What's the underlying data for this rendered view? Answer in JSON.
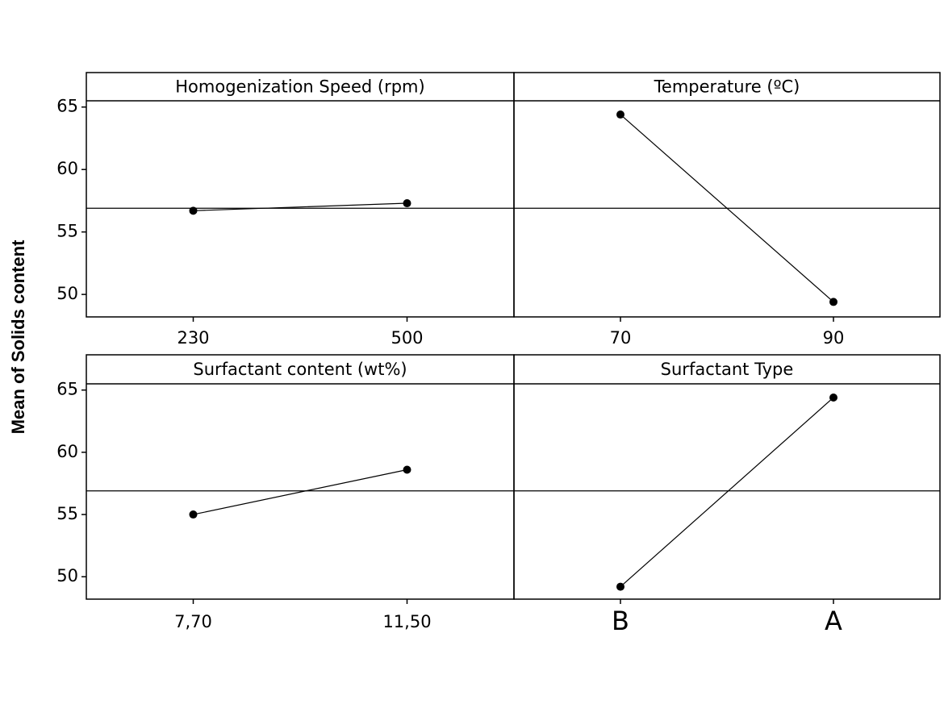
{
  "y_axis_label": "Mean of Solids content",
  "chart_data": [
    {
      "type": "line",
      "title": "Homogenization Speed (rpm)",
      "categories": [
        "230",
        "500"
      ],
      "values": [
        56.7,
        57.3
      ],
      "color": "#000000",
      "ylim": [
        48.2,
        65.5
      ],
      "yticks": [
        50,
        55,
        60,
        65
      ],
      "reference_line": 56.9
    },
    {
      "type": "line",
      "title": "Temperature (ºC)",
      "categories": [
        "70",
        "90"
      ],
      "values": [
        64.4,
        49.4
      ],
      "color": "#000000",
      "ylim": [
        48.2,
        65.5
      ],
      "reference_line": 56.9
    },
    {
      "type": "line",
      "title": "Surfactant content (wt%)",
      "categories": [
        "7,70",
        "11,50"
      ],
      "values": [
        55.0,
        58.6
      ],
      "color": "#000000",
      "ylim": [
        48.2,
        65.5
      ],
      "yticks": [
        50,
        55,
        60,
        65
      ],
      "reference_line": 56.9
    },
    {
      "type": "line",
      "title": "Surfactant Type",
      "categories": [
        "B",
        "A"
      ],
      "values": [
        49.2,
        64.4
      ],
      "color": "#000000",
      "ylim": [
        48.2,
        65.5
      ],
      "reference_line": 56.9
    }
  ]
}
